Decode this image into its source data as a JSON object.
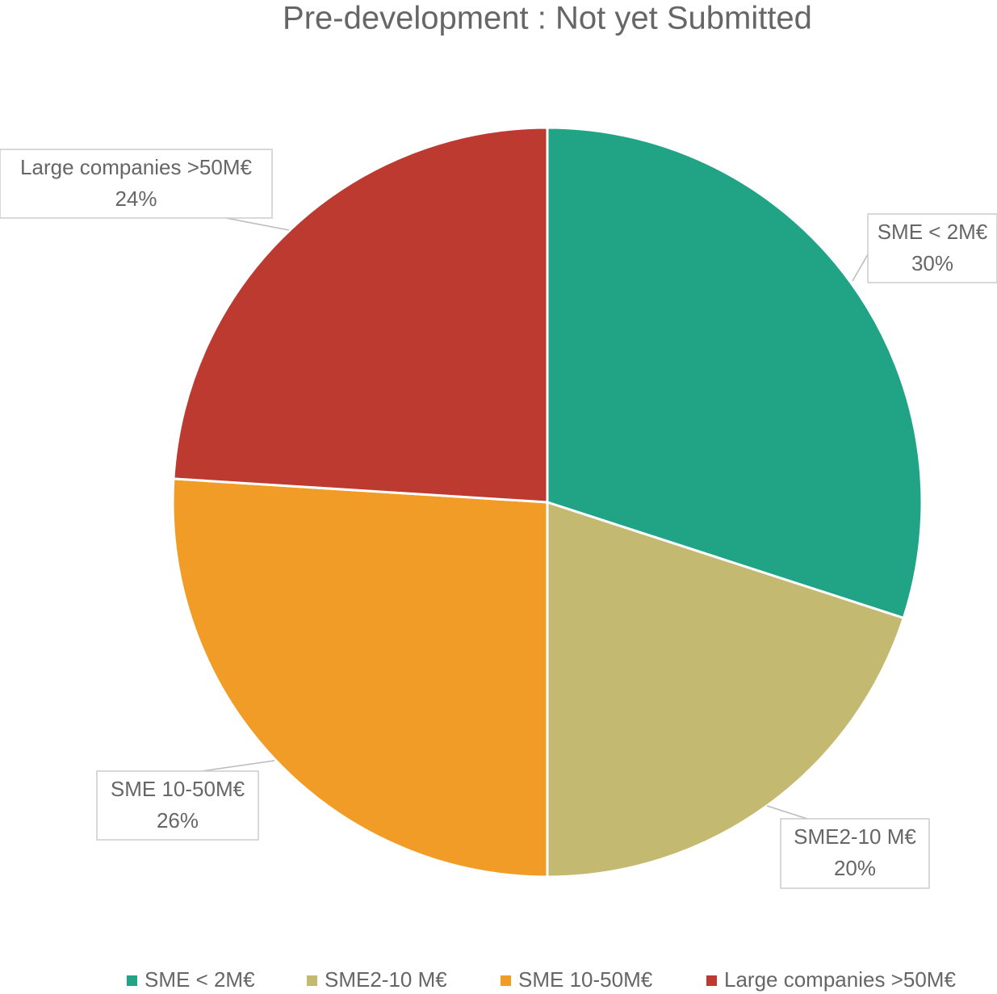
{
  "chart_data": {
    "type": "pie",
    "title": "Pre-development : Not yet Submitted",
    "categories": [
      "SME < 2M€",
      "SME2-10 M€",
      "SME 10-50M€",
      "Large companies >50M€"
    ],
    "values": [
      30,
      20,
      26,
      24
    ],
    "value_labels": [
      "30%",
      "20%",
      "26%",
      "24%"
    ],
    "colors": [
      "#21a386",
      "#c3b970",
      "#f09c27",
      "#bd3a30"
    ],
    "legend": "bottom"
  }
}
